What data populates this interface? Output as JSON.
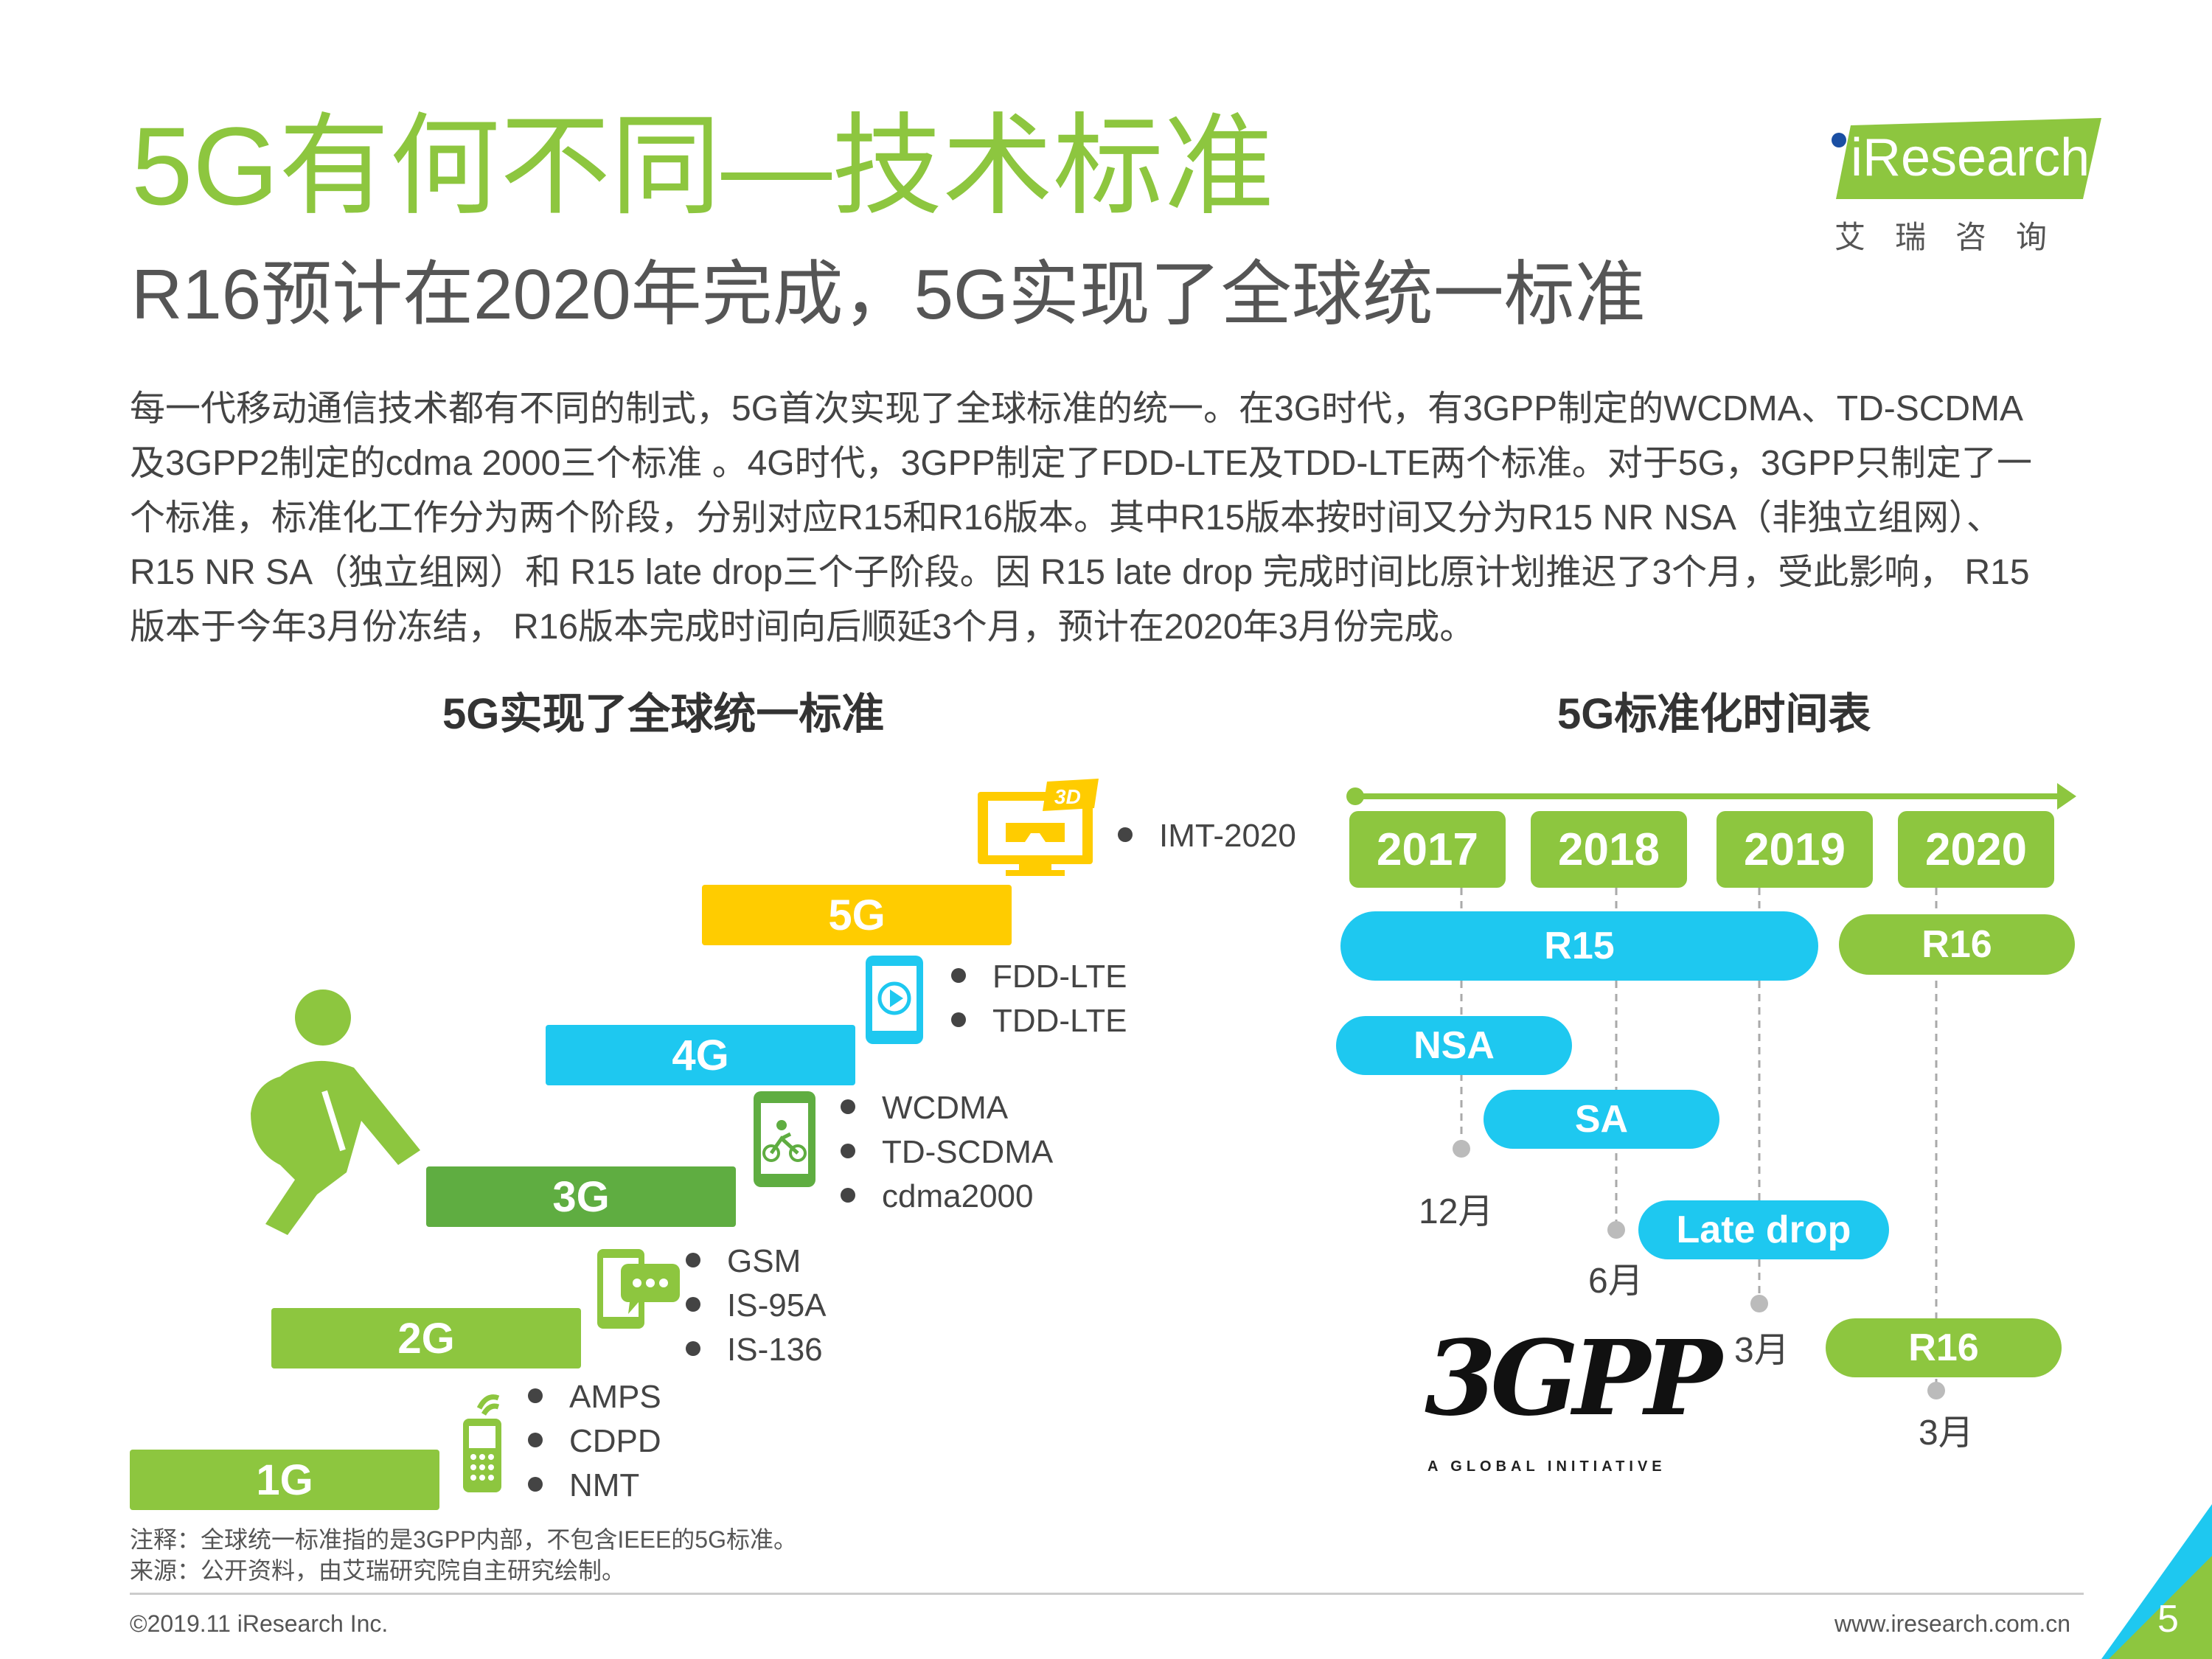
{
  "title": "5G有何不同—技术标准",
  "subtitle": "R16预计在2020年完成，5G实现了全球统一标准",
  "logo": {
    "brand": "iResearch",
    "cn": "艾瑞咨询"
  },
  "body_lines": [
    "每一代移动通信技术都有不同的制式，5G首次实现了全球标准的统一。在3G时代，有3GPP制定的WCDMA、TD-SCDMA",
    "及3GPP2制定的cdma 2000三个标准 。4G时代，3GPP制定了FDD-LTE及TDD-LTE两个标准。对于5G，3GPP只制定了一",
    "个标准，标准化工作分为两个阶段，分别对应R15和R16版本。其中R15版本按时间又分为R15 NR NSA（非独立组网）、",
    "R15 NR SA（独立组网）和 R15 late drop三个子阶段。因 R15 late drop 完成时间比原计划推迟了3个月，受此影响， R15",
    "版本于今年3月份冻结， R16版本完成时间向后顺延3个月，预计在2020年3月份完成。"
  ],
  "left": {
    "title": "5G实现了全球统一标准",
    "generations": [
      {
        "label": "1G",
        "color": "#8dc63f",
        "standards": [
          "AMPS",
          "CDPD",
          "NMT"
        ]
      },
      {
        "label": "2G",
        "color": "#8dc63f",
        "standards": [
          "GSM",
          "IS-95A",
          "IS-136"
        ]
      },
      {
        "label": "3G",
        "color": "#5fad41",
        "standards": [
          "WCDMA",
          "TD-SCDMA",
          "cdma2000"
        ]
      },
      {
        "label": "4G",
        "color": "#1ec8f0",
        "standards": [
          "FDD-LTE",
          "TDD-LTE"
        ]
      },
      {
        "label": "5G",
        "color": "#ffcc00",
        "standards": [
          "IMT-2020"
        ]
      }
    ],
    "icon_3d": "3D"
  },
  "right": {
    "title": "5G标准化时间表",
    "years": [
      "2017",
      "2018",
      "2019",
      "2020"
    ],
    "phases": {
      "r15": "R15",
      "r16_top": "R16",
      "nsa": "NSA",
      "sa": "SA",
      "late_drop": "Late drop",
      "r16_bottom": "R16"
    },
    "months": {
      "m12": "12月",
      "m6": "6月",
      "m3a": "3月",
      "m3b": "3月"
    },
    "logo_3gpp": {
      "mark": "3GPP",
      "tagline": "A GLOBAL INITIATIVE"
    }
  },
  "notes": {
    "note": "注释：全球统一标准指的是3GPP内部，不包含IEEE的5G标准。",
    "source": "来源：公开资料，由艾瑞研究院自主研究绘制。"
  },
  "footer": {
    "copyright": "©2019.11 iResearch Inc.",
    "url": "www.iresearch.com.cn",
    "page": "5"
  },
  "colors": {
    "green": "#8dc63f",
    "dark_green": "#5fad41",
    "blue": "#1ec8f0",
    "yellow": "#ffcc00"
  }
}
